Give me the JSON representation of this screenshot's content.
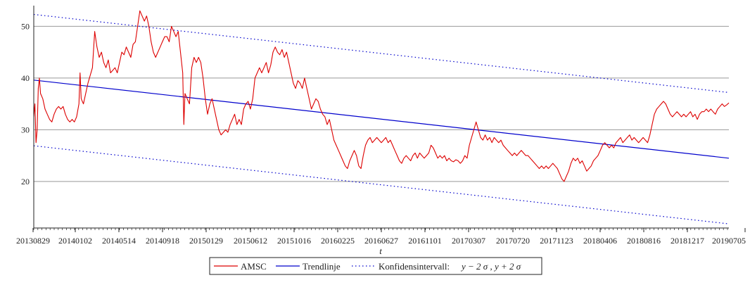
{
  "chart_data": {
    "type": "line",
    "xlabel": "t",
    "ylabel": "",
    "ylim": [
      11,
      54
    ],
    "y_ticks": [
      20,
      30,
      40,
      50
    ],
    "x_tick_labels": [
      "20130829",
      "20140102",
      "20140514",
      "20140918",
      "20150129",
      "20150612",
      "20151016",
      "20160225",
      "20160627",
      "20161101",
      "20170307",
      "20170720",
      "20171123",
      "20180406",
      "20180816",
      "20181217",
      "20190705"
    ],
    "grid": "horizontal",
    "legend_position": "bottom-center",
    "colors": {
      "amsc": "#dd0000",
      "trend": "#0000cc",
      "conf": "#0000cc",
      "grid": "#999999"
    },
    "series": [
      {
        "name": "AMSC",
        "style": "solid",
        "points": [
          [
            0,
            32.5
          ],
          [
            1,
            35
          ],
          [
            2,
            27.5
          ],
          [
            3,
            30
          ],
          [
            4,
            38
          ],
          [
            5,
            40
          ],
          [
            6,
            37
          ],
          [
            8,
            36
          ],
          [
            10,
            34
          ],
          [
            12,
            33
          ],
          [
            14,
            32
          ],
          [
            16,
            31.5
          ],
          [
            18,
            33
          ],
          [
            20,
            34
          ],
          [
            22,
            34.5
          ],
          [
            24,
            34
          ],
          [
            26,
            34.5
          ],
          [
            28,
            33
          ],
          [
            30,
            32
          ],
          [
            32,
            31.5
          ],
          [
            34,
            32
          ],
          [
            36,
            31.5
          ],
          [
            38,
            32.5
          ],
          [
            40,
            35
          ],
          [
            41,
            41
          ],
          [
            42,
            36
          ],
          [
            44,
            35
          ],
          [
            46,
            37
          ],
          [
            48,
            39
          ],
          [
            50,
            40.5
          ],
          [
            52,
            42
          ],
          [
            54,
            49
          ],
          [
            56,
            46
          ],
          [
            58,
            44
          ],
          [
            60,
            45
          ],
          [
            62,
            43
          ],
          [
            64,
            42
          ],
          [
            66,
            43.5
          ],
          [
            68,
            41
          ],
          [
            70,
            41.5
          ],
          [
            72,
            42
          ],
          [
            74,
            41
          ],
          [
            76,
            43
          ],
          [
            78,
            45
          ],
          [
            80,
            44.5
          ],
          [
            82,
            46
          ],
          [
            84,
            45
          ],
          [
            86,
            44
          ],
          [
            88,
            46.5
          ],
          [
            90,
            47
          ],
          [
            92,
            50
          ],
          [
            94,
            53
          ],
          [
            96,
            52
          ],
          [
            98,
            51
          ],
          [
            100,
            52
          ],
          [
            102,
            50
          ],
          [
            104,
            47
          ],
          [
            106,
            45
          ],
          [
            108,
            44
          ],
          [
            110,
            45
          ],
          [
            112,
            46
          ],
          [
            114,
            47
          ],
          [
            116,
            48
          ],
          [
            118,
            48
          ],
          [
            120,
            47
          ],
          [
            122,
            50
          ],
          [
            124,
            49
          ],
          [
            126,
            48
          ],
          [
            128,
            49
          ],
          [
            130,
            45
          ],
          [
            132,
            41
          ],
          [
            133,
            31
          ],
          [
            134,
            37
          ],
          [
            136,
            36
          ],
          [
            138,
            35
          ],
          [
            140,
            42
          ],
          [
            142,
            44
          ],
          [
            144,
            43
          ],
          [
            146,
            44
          ],
          [
            148,
            43
          ],
          [
            150,
            40
          ],
          [
            152,
            36
          ],
          [
            154,
            33
          ],
          [
            156,
            35
          ],
          [
            158,
            36
          ],
          [
            160,
            34
          ],
          [
            162,
            32
          ],
          [
            164,
            30
          ],
          [
            166,
            29
          ],
          [
            168,
            29.5
          ],
          [
            170,
            30
          ],
          [
            172,
            29.5
          ],
          [
            174,
            31
          ],
          [
            176,
            32
          ],
          [
            178,
            33
          ],
          [
            180,
            31
          ],
          [
            182,
            32
          ],
          [
            184,
            31
          ],
          [
            186,
            34
          ],
          [
            188,
            35
          ],
          [
            190,
            35.5
          ],
          [
            192,
            34
          ],
          [
            194,
            36
          ],
          [
            196,
            40
          ],
          [
            198,
            41
          ],
          [
            200,
            42
          ],
          [
            202,
            41
          ],
          [
            204,
            42
          ],
          [
            206,
            43
          ],
          [
            208,
            41
          ],
          [
            210,
            42.5
          ],
          [
            212,
            45
          ],
          [
            214,
            46
          ],
          [
            216,
            45
          ],
          [
            218,
            44.5
          ],
          [
            220,
            45.5
          ],
          [
            222,
            44
          ],
          [
            224,
            45
          ],
          [
            226,
            43
          ],
          [
            228,
            41
          ],
          [
            230,
            39
          ],
          [
            232,
            38
          ],
          [
            234,
            39.5
          ],
          [
            236,
            39
          ],
          [
            238,
            38
          ],
          [
            240,
            40
          ],
          [
            242,
            38
          ],
          [
            244,
            36
          ],
          [
            246,
            34
          ],
          [
            248,
            35
          ],
          [
            250,
            36
          ],
          [
            252,
            35.5
          ],
          [
            254,
            34
          ],
          [
            256,
            33
          ],
          [
            258,
            32.5
          ],
          [
            260,
            31
          ],
          [
            262,
            32
          ],
          [
            264,
            30
          ],
          [
            266,
            28
          ],
          [
            268,
            27
          ],
          [
            270,
            26
          ],
          [
            272,
            25
          ],
          [
            274,
            24
          ],
          [
            276,
            23
          ],
          [
            278,
            22.5
          ],
          [
            280,
            24
          ],
          [
            282,
            25
          ],
          [
            284,
            26
          ],
          [
            286,
            25
          ],
          [
            288,
            23
          ],
          [
            290,
            22.5
          ],
          [
            292,
            25
          ],
          [
            294,
            27
          ],
          [
            296,
            28
          ],
          [
            298,
            28.5
          ],
          [
            300,
            27.5
          ],
          [
            302,
            28
          ],
          [
            304,
            28.5
          ],
          [
            306,
            28
          ],
          [
            308,
            27.5
          ],
          [
            310,
            28
          ],
          [
            312,
            28.5
          ],
          [
            314,
            27.5
          ],
          [
            316,
            28
          ],
          [
            318,
            27
          ],
          [
            320,
            26
          ],
          [
            322,
            25
          ],
          [
            324,
            24
          ],
          [
            326,
            23.5
          ],
          [
            328,
            24.5
          ],
          [
            330,
            25
          ],
          [
            332,
            24.5
          ],
          [
            334,
            24
          ],
          [
            336,
            25
          ],
          [
            338,
            25.5
          ],
          [
            340,
            24.5
          ],
          [
            342,
            25.5
          ],
          [
            344,
            25
          ],
          [
            346,
            24.5
          ],
          [
            348,
            25
          ],
          [
            350,
            25.5
          ],
          [
            352,
            27
          ],
          [
            354,
            26.5
          ],
          [
            356,
            25.5
          ],
          [
            358,
            24.5
          ],
          [
            360,
            25
          ],
          [
            362,
            24.5
          ],
          [
            364,
            25
          ],
          [
            366,
            24
          ],
          [
            368,
            24.5
          ],
          [
            370,
            24
          ],
          [
            372,
            23.8
          ],
          [
            374,
            24.2
          ],
          [
            376,
            24
          ],
          [
            378,
            23.5
          ],
          [
            380,
            24
          ],
          [
            382,
            25
          ],
          [
            384,
            24.5
          ],
          [
            386,
            27
          ],
          [
            388,
            28.5
          ],
          [
            390,
            30
          ],
          [
            392,
            31.5
          ],
          [
            394,
            30
          ],
          [
            396,
            28.5
          ],
          [
            398,
            28
          ],
          [
            400,
            29
          ],
          [
            402,
            28
          ],
          [
            404,
            28.5
          ],
          [
            406,
            27.5
          ],
          [
            408,
            28.5
          ],
          [
            410,
            28
          ],
          [
            412,
            27.5
          ],
          [
            414,
            28
          ],
          [
            416,
            27
          ],
          [
            418,
            26.5
          ],
          [
            420,
            26
          ],
          [
            422,
            25.5
          ],
          [
            424,
            25
          ],
          [
            426,
            25.5
          ],
          [
            428,
            25
          ],
          [
            430,
            25.5
          ],
          [
            432,
            26
          ],
          [
            434,
            25.5
          ],
          [
            436,
            25
          ],
          [
            438,
            25
          ],
          [
            440,
            24.5
          ],
          [
            442,
            24
          ],
          [
            444,
            23.5
          ],
          [
            446,
            23
          ],
          [
            448,
            22.5
          ],
          [
            450,
            23
          ],
          [
            452,
            22.5
          ],
          [
            454,
            23
          ],
          [
            456,
            22.5
          ],
          [
            458,
            23
          ],
          [
            460,
            23.5
          ],
          [
            462,
            23
          ],
          [
            464,
            22.5
          ],
          [
            466,
            21.5
          ],
          [
            468,
            20.5
          ],
          [
            470,
            20
          ],
          [
            472,
            21
          ],
          [
            474,
            22
          ],
          [
            476,
            23.5
          ],
          [
            478,
            24.5
          ],
          [
            480,
            24
          ],
          [
            482,
            24.5
          ],
          [
            484,
            23.5
          ],
          [
            486,
            24
          ],
          [
            488,
            23
          ],
          [
            490,
            22
          ],
          [
            492,
            22.5
          ],
          [
            494,
            23
          ],
          [
            496,
            24
          ],
          [
            498,
            24.5
          ],
          [
            500,
            25
          ],
          [
            502,
            26
          ],
          [
            504,
            27
          ],
          [
            506,
            27.5
          ],
          [
            508,
            27
          ],
          [
            510,
            26.5
          ],
          [
            512,
            27
          ],
          [
            514,
            26.5
          ],
          [
            516,
            27.5
          ],
          [
            518,
            28
          ],
          [
            520,
            28.5
          ],
          [
            522,
            27.5
          ],
          [
            524,
            28
          ],
          [
            526,
            28.5
          ],
          [
            528,
            29
          ],
          [
            530,
            28
          ],
          [
            532,
            28.5
          ],
          [
            534,
            28
          ],
          [
            536,
            27.5
          ],
          [
            538,
            28
          ],
          [
            540,
            28.5
          ],
          [
            542,
            28
          ],
          [
            544,
            27.5
          ],
          [
            546,
            29
          ],
          [
            548,
            31
          ],
          [
            550,
            33
          ],
          [
            552,
            34
          ],
          [
            554,
            34.5
          ],
          [
            556,
            35
          ],
          [
            558,
            35.5
          ],
          [
            560,
            35
          ],
          [
            562,
            34
          ],
          [
            564,
            33
          ],
          [
            566,
            32.5
          ],
          [
            568,
            33
          ],
          [
            570,
            33.5
          ],
          [
            572,
            33
          ],
          [
            574,
            32.5
          ],
          [
            576,
            33
          ],
          [
            578,
            32.5
          ],
          [
            580,
            33
          ],
          [
            582,
            33.5
          ],
          [
            584,
            32.5
          ],
          [
            586,
            33
          ],
          [
            588,
            32
          ],
          [
            590,
            33
          ],
          [
            592,
            33.5
          ],
          [
            594,
            33.5
          ],
          [
            596,
            34
          ],
          [
            598,
            33.5
          ],
          [
            600,
            34
          ],
          [
            602,
            33.5
          ],
          [
            604,
            33
          ],
          [
            606,
            34
          ],
          [
            608,
            34.5
          ],
          [
            610,
            35
          ],
          [
            612,
            34.5
          ],
          [
            614,
            34.8
          ],
          [
            616,
            35.2
          ]
        ]
      },
      {
        "name": "Trendlinje",
        "style": "solid",
        "points": [
          [
            0,
            39.6
          ],
          [
            616,
            24.5
          ]
        ]
      },
      {
        "name": "Konfidensintervall:",
        "legend_math": "y − 2 σ , y + 2 σ",
        "style": "dotted",
        "bands": [
          [
            [
              0,
              52.3
            ],
            [
              616,
              37.2
            ]
          ],
          [
            [
              0,
              26.9
            ],
            [
              616,
              11.8
            ]
          ]
        ]
      }
    ]
  }
}
